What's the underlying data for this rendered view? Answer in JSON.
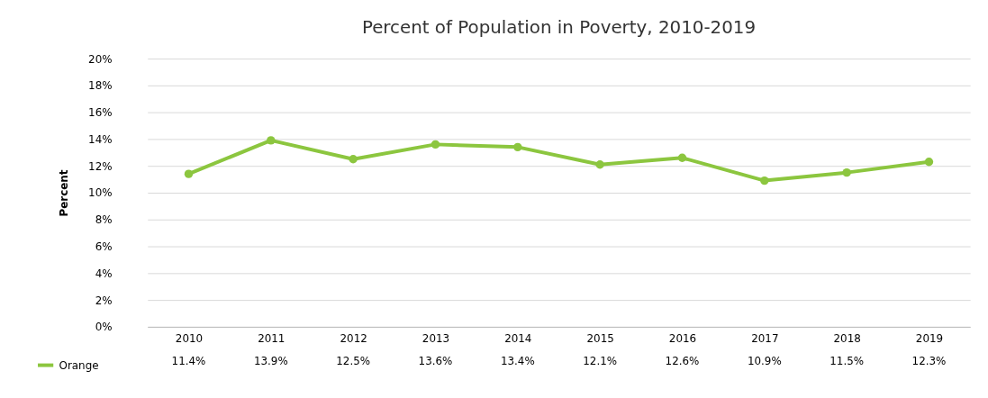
{
  "chart_data": {
    "type": "line",
    "title": "Percent of Population in Poverty, 2010-2019",
    "ylabel": "Percent",
    "categories": [
      "2010",
      "2011",
      "2012",
      "2013",
      "2014",
      "2015",
      "2016",
      "2017",
      "2018",
      "2019"
    ],
    "series": [
      {
        "name": "Orange",
        "color": "#8cc63f",
        "values": [
          11.4,
          13.9,
          12.5,
          13.6,
          13.4,
          12.1,
          12.6,
          10.9,
          11.5,
          12.3
        ],
        "value_labels": [
          "11.4%",
          "13.9%",
          "12.5%",
          "13.6%",
          "13.4%",
          "12.1%",
          "12.6%",
          "10.9%",
          "11.5%",
          "12.3%"
        ]
      }
    ],
    "ylim": [
      0,
      20
    ],
    "yticks": [
      {
        "value": 0,
        "label": "0%"
      },
      {
        "value": 2,
        "label": "2%"
      },
      {
        "value": 4,
        "label": "4%"
      },
      {
        "value": 6,
        "label": "6%"
      },
      {
        "value": 8,
        "label": "8%"
      },
      {
        "value": 10,
        "label": "10%"
      },
      {
        "value": 12,
        "label": "12%"
      },
      {
        "value": 14,
        "label": "14%"
      },
      {
        "value": 16,
        "label": "16%"
      },
      {
        "value": 18,
        "label": "18%"
      },
      {
        "value": 20,
        "label": "20%"
      }
    ],
    "grid": "y",
    "legend": "bottom left",
    "marker": "circle",
    "line_style": "solid"
  }
}
